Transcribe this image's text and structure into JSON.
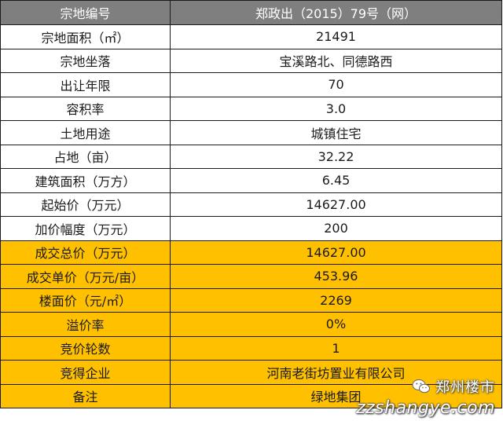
{
  "table": {
    "header": {
      "label": "宗地编号",
      "value": "郑政出（2015）79号（网）"
    },
    "rows": [
      {
        "label": "宗地面积（㎡）",
        "value": "21491"
      },
      {
        "label": "宗地坐落",
        "value": "宝溪路北、同德路西"
      },
      {
        "label": "出让年限",
        "value": "70"
      },
      {
        "label": "容积率",
        "value": "3.0"
      },
      {
        "label": "土地用途",
        "value": "城镇住宅"
      },
      {
        "label": "占地（亩）",
        "value": "32.22"
      },
      {
        "label": "建筑面积（万方）",
        "value": "6.45"
      },
      {
        "label": "起始价（万元）",
        "value": "14627.00"
      },
      {
        "label": "加价幅度（万元）",
        "value": "200"
      },
      {
        "label": "成交总价（万元）",
        "value": "14627.00"
      },
      {
        "label": "成交单价（万元/亩）",
        "value": "453.96"
      },
      {
        "label": "楼面价（元/㎡）",
        "value": "2269"
      },
      {
        "label": "溢价率",
        "value": "0%"
      },
      {
        "label": "竞价轮数",
        "value": "1"
      },
      {
        "label": "竞得企业",
        "value": "河南老街坊置业有限公司"
      },
      {
        "label": "备注",
        "value": "绿地集团"
      }
    ]
  },
  "watermark": {
    "icon": "wechat-icon",
    "account": "郑州楼市",
    "url": "zzshangye.com"
  },
  "colors": {
    "header_bg": "#7f7f7f",
    "highlight_bg": "#ffc000",
    "border": "#1a1a1a"
  }
}
